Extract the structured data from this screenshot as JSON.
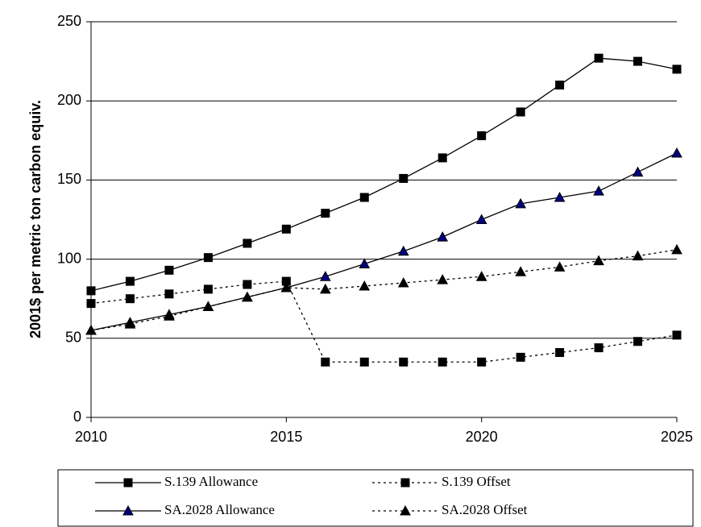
{
  "chart_data": {
    "type": "line",
    "y_label": "2001$ per metric ton carbon equiv.",
    "x": [
      2010,
      2011,
      2012,
      2013,
      2014,
      2015,
      2016,
      2017,
      2018,
      2019,
      2020,
      2021,
      2022,
      2023,
      2024,
      2025
    ],
    "xlim": [
      2010,
      2025
    ],
    "xticks": [
      2010,
      2015,
      2020,
      2025
    ],
    "ylim": [
      0,
      250
    ],
    "yticks": [
      0,
      50,
      100,
      150,
      200,
      250
    ],
    "grid": true,
    "legend": "bottom",
    "series": [
      {
        "name": "S.139 Allowance",
        "color": "#000000",
        "line": "solid",
        "marker": "square",
        "values": [
          80,
          86,
          93,
          101,
          110,
          119,
          129,
          139,
          151,
          164,
          178,
          193,
          210,
          227,
          225,
          220
        ]
      },
      {
        "name": "S.139 Offset",
        "color": "#000000",
        "line": "dotted",
        "marker": "square",
        "values": [
          72,
          75,
          78,
          81,
          84,
          86,
          35,
          35,
          35,
          35,
          35,
          38,
          41,
          44,
          48,
          52
        ]
      },
      {
        "name": "SA.2028 Allowance",
        "color": "#000080",
        "line": "solid",
        "marker": "triangle",
        "values": [
          55,
          60,
          65,
          70,
          76,
          82,
          89,
          97,
          105,
          114,
          125,
          135,
          139,
          143,
          155,
          167
        ]
      },
      {
        "name": "SA.2028 Offset",
        "color": "#000000",
        "line": "dotted",
        "marker": "triangle",
        "values": [
          55,
          59,
          64,
          70,
          76,
          82,
          81,
          83,
          85,
          87,
          89,
          92,
          95,
          99,
          102,
          106
        ]
      }
    ]
  }
}
